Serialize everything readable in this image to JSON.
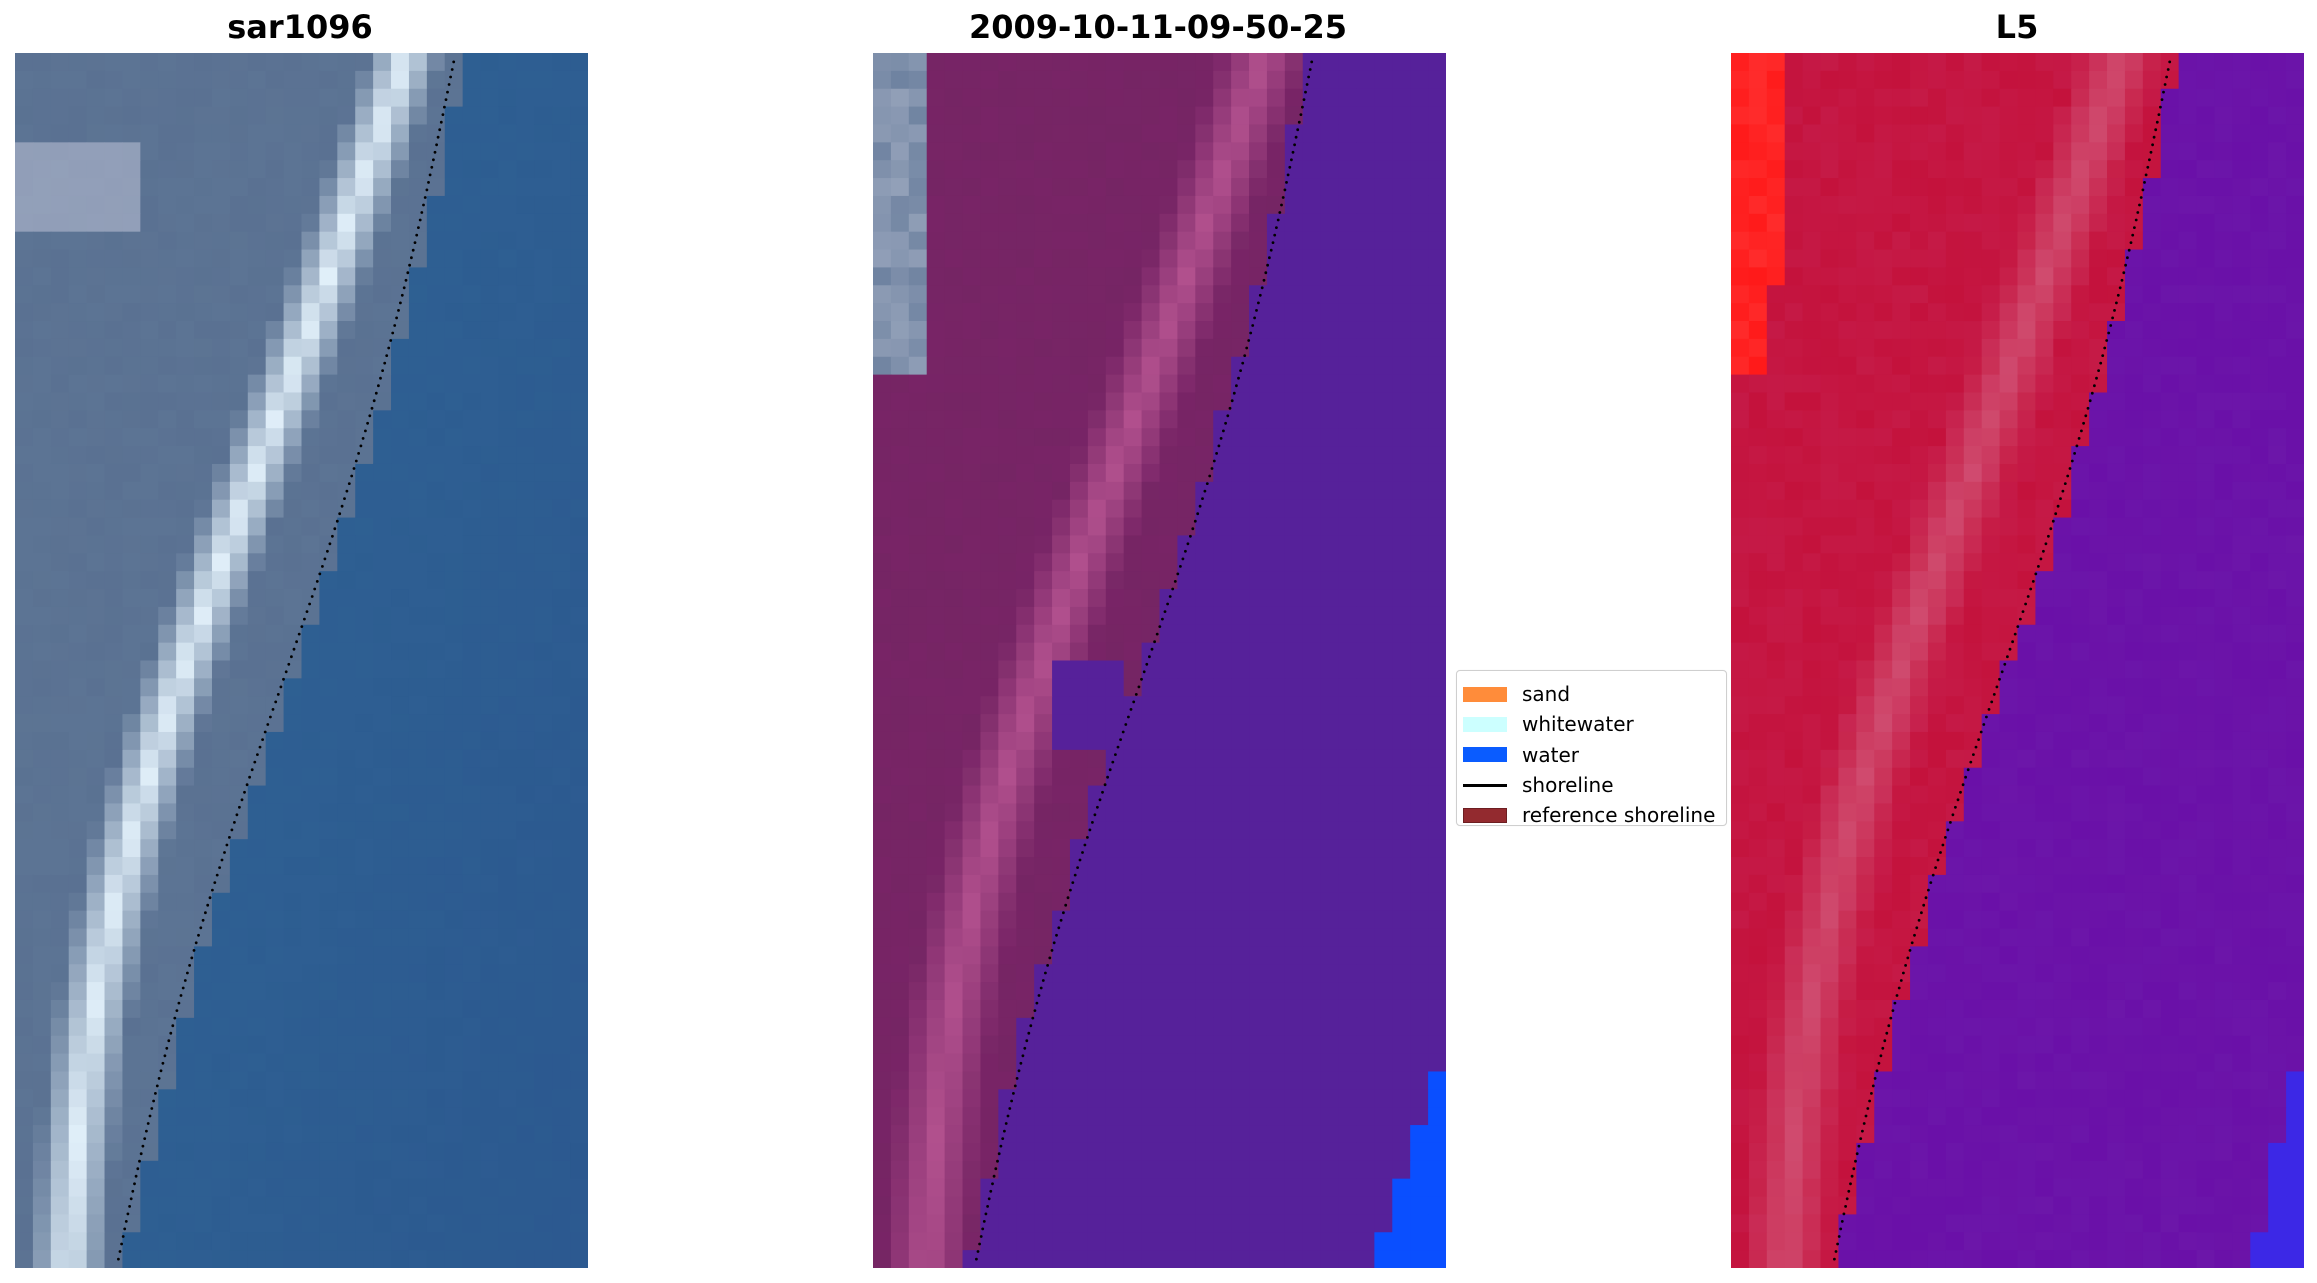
{
  "panels": [
    {
      "title": "sar1096",
      "icon": "rgb-satellite-image"
    },
    {
      "title": "2009-10-11-09-50-25",
      "icon": "classified-image"
    },
    {
      "title": "L5",
      "icon": "mndwi-index-image"
    }
  ],
  "legend": {
    "items": [
      {
        "label": "sand",
        "color": "#ff8c3a",
        "kind": "patch"
      },
      {
        "label": "whitewater",
        "color": "#ccffff",
        "kind": "patch"
      },
      {
        "label": "water",
        "color": "#0a5cff",
        "kind": "patch"
      },
      {
        "label": "shoreline",
        "color": "#000000",
        "kind": "line"
      },
      {
        "label": "reference shoreline",
        "color": "#932a2f",
        "kind": "patch"
      }
    ]
  },
  "colors": {
    "water_rgb": "#2e5f92",
    "land_rgb": "#5a7192",
    "surf_rgb": "#e8f6ff",
    "classified_land": "#782466",
    "classified_beach": "#b85592",
    "classified_water": "#56219a",
    "classified_pure_water": "#0a4fff",
    "index_land": "#c4123c",
    "index_water": "#6a10a8",
    "index_bright_red": "#ff1a1a",
    "shoreline_dots": "#000000"
  }
}
